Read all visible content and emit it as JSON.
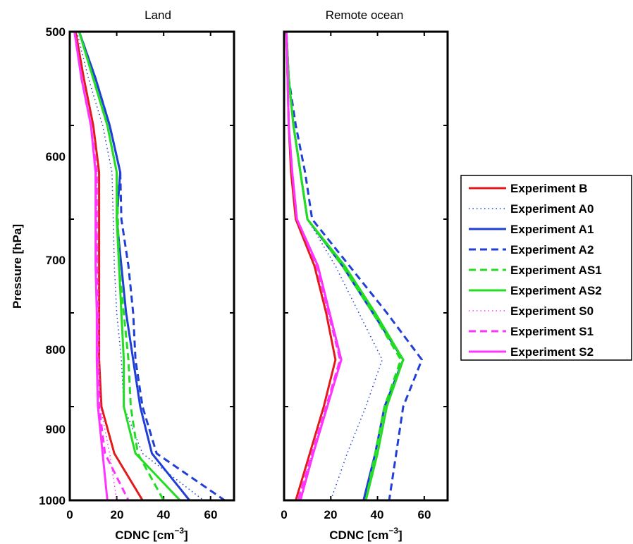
{
  "chart_data": {
    "type": "line",
    "y_label": "Pressure [hPa]",
    "y_ticks": [
      500,
      600,
      700,
      800,
      900,
      1000
    ],
    "y_range": [
      500,
      1000
    ],
    "y_reversed": true,
    "x_ticks": [
      0,
      20,
      40,
      60
    ],
    "x_range": [
      0,
      70
    ],
    "x_label_main": "CDNC [cm",
    "x_label_sup": "−3",
    "x_label_end": "]",
    "legend_position": "right",
    "legend": [
      {
        "name": "Experiment B",
        "color": "#e31a1c",
        "dash": "solid"
      },
      {
        "name": "Experiment A0",
        "color": "#1f3fd6",
        "dash": "dotted"
      },
      {
        "name": "Experiment A1",
        "color": "#1f3fd6",
        "dash": "solid"
      },
      {
        "name": "Experiment A2",
        "color": "#1f3fd6",
        "dash": "dashed"
      },
      {
        "name": "Experiment AS1",
        "color": "#22dd22",
        "dash": "dashed"
      },
      {
        "name": "Experiment AS2",
        "color": "#22dd22",
        "dash": "solid"
      },
      {
        "name": "Experiment S0",
        "color": "#ff33ff",
        "dash": "dotted"
      },
      {
        "name": "Experiment S1",
        "color": "#ff33ff",
        "dash": "dashed"
      },
      {
        "name": "Experiment S2",
        "color": "#ff33ff",
        "dash": "solid"
      }
    ],
    "panels": [
      {
        "title": "Land",
        "series": [
          {
            "name": "Experiment B",
            "pressure": [
              500,
              550,
              600,
              650,
              700,
              750,
              800,
              850,
              900,
              950,
              1000
            ],
            "cdnc": [
              2.5,
              6,
              10,
              12.5,
              12.5,
              12.5,
              12.5,
              12.5,
              13.5,
              19,
              31
            ]
          },
          {
            "name": "Experiment A0",
            "pressure": [
              500,
              550,
              600,
              650,
              700,
              750,
              800,
              850,
              900,
              950,
              1000
            ],
            "cdnc": [
              3,
              8,
              14,
              18,
              18.5,
              19,
              20,
              22,
              23,
              31,
              57
            ]
          },
          {
            "name": "Experiment A1",
            "pressure": [
              500,
              550,
              600,
              650,
              700,
              750,
              800,
              850,
              900,
              950,
              1000
            ],
            "cdnc": [
              4,
              11,
              17,
              21.5,
              20,
              22,
              24,
              27,
              30,
              35,
              51
            ]
          },
          {
            "name": "Experiment A2",
            "pressure": [
              500,
              550,
              600,
              650,
              700,
              750,
              800,
              850,
              900,
              950,
              1000
            ],
            "cdnc": [
              4,
              11,
              17,
              21.5,
              22,
              25,
              27,
              28,
              31,
              37,
              66
            ]
          },
          {
            "name": "Experiment AS1",
            "pressure": [
              500,
              550,
              600,
              650,
              700,
              750,
              800,
              850,
              900,
              950,
              1000
            ],
            "cdnc": [
              4,
              10,
              16,
              20,
              20.5,
              21,
              23,
              25,
              26,
              29,
              40
            ]
          },
          {
            "name": "Experiment AS2",
            "pressure": [
              500,
              550,
              600,
              650,
              700,
              750,
              800,
              850,
              900,
              950,
              1000
            ],
            "cdnc": [
              4,
              10,
              16,
              20,
              20,
              21,
              22,
              23,
              23,
              28,
              47
            ]
          },
          {
            "name": "Experiment S0",
            "pressure": [
              500,
              550,
              600,
              650,
              700,
              750,
              800,
              850,
              900,
              950,
              1000
            ],
            "cdnc": [
              2,
              5,
              9,
              11.5,
              11.5,
              12,
              12.5,
              12.5,
              13,
              17,
              20
            ]
          },
          {
            "name": "Experiment S1",
            "pressure": [
              500,
              550,
              600,
              650,
              700,
              750,
              800,
              850,
              900,
              950,
              1000
            ],
            "cdnc": [
              2,
              5,
              9,
              11.5,
              11.5,
              11.5,
              12,
              12,
              12.5,
              15,
              25
            ]
          },
          {
            "name": "Experiment S2",
            "pressure": [
              500,
              550,
              600,
              650,
              700,
              750,
              800,
              850,
              900,
              950,
              1000
            ],
            "cdnc": [
              2,
              5,
              9,
              11,
              11,
              11,
              11.5,
              11.5,
              12,
              14,
              16
            ]
          }
        ]
      },
      {
        "title": "Remote ocean",
        "series": [
          {
            "name": "Experiment B",
            "pressure": [
              500,
              550,
              600,
              650,
              700,
              750,
              800,
              850,
              900,
              950,
              1000
            ],
            "cdnc": [
              1,
              1.5,
              2,
              3,
              5,
              13,
              18,
              22,
              17,
              11,
              5
            ]
          },
          {
            "name": "Experiment A0",
            "pressure": [
              500,
              550,
              600,
              650,
              700,
              750,
              800,
              850,
              900,
              950,
              1000
            ],
            "cdnc": [
              1,
              2,
              4,
              7,
              10,
              22,
              32,
              42,
              35,
              27,
              20
            ]
          },
          {
            "name": "Experiment A1",
            "pressure": [
              500,
              550,
              600,
              650,
              700,
              750,
              800,
              850,
              900,
              950,
              1000
            ],
            "cdnc": [
              1,
              2,
              4,
              7,
              10,
              25,
              38,
              51,
              43,
              39,
              34
            ]
          },
          {
            "name": "Experiment A2",
            "pressure": [
              500,
              550,
              600,
              650,
              700,
              750,
              800,
              850,
              900,
              950,
              1000
            ],
            "cdnc": [
              1,
              2,
              5,
              9,
              12,
              28,
              44,
              59,
              51,
              48,
              45
            ]
          },
          {
            "name": "Experiment AS1",
            "pressure": [
              500,
              550,
              600,
              650,
              700,
              750,
              800,
              850,
              900,
              950,
              1000
            ],
            "cdnc": [
              1,
              2,
              4,
              7,
              10,
              25,
              38,
              50,
              43,
              39,
              35
            ]
          },
          {
            "name": "Experiment AS2",
            "pressure": [
              500,
              550,
              600,
              650,
              700,
              750,
              800,
              850,
              900,
              950,
              1000
            ],
            "cdnc": [
              1,
              2,
              4,
              7,
              10,
              26,
              39,
              51,
              44,
              40,
              35
            ]
          },
          {
            "name": "Experiment S0",
            "pressure": [
              500,
              550,
              600,
              650,
              700,
              750,
              800,
              850,
              900,
              950,
              1000
            ],
            "cdnc": [
              1,
              1.5,
              2,
              3.5,
              5.5,
              14,
              19,
              24,
              18,
              12,
              6
            ]
          },
          {
            "name": "Experiment S1",
            "pressure": [
              500,
              550,
              600,
              650,
              700,
              750,
              800,
              850,
              900,
              950,
              1000
            ],
            "cdnc": [
              1,
              1.5,
              2,
              3.5,
              5.5,
              14,
              19,
              24,
              18,
              12,
              6
            ]
          },
          {
            "name": "Experiment S2",
            "pressure": [
              500,
              550,
              600,
              650,
              700,
              750,
              800,
              850,
              900,
              950,
              1000
            ],
            "cdnc": [
              1,
              1.5,
              2,
              3.5,
              5.5,
              14.5,
              19.5,
              24.5,
              18.5,
              12.5,
              7
            ]
          }
        ]
      }
    ]
  }
}
